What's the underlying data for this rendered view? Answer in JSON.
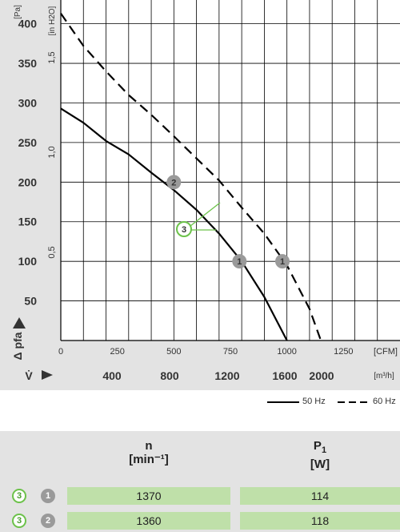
{
  "chart_data": {
    "type": "line",
    "y_unit_top": "[Pa]",
    "y2_unit_top": "[in H2O]",
    "ylabel": "Δ pfa",
    "y_ticks": [
      50,
      100,
      150,
      200,
      250,
      300,
      350,
      400
    ],
    "y2_ticks": [
      "0,5",
      "1,0",
      "1,5"
    ],
    "x_cfm_unit": "[CFM]",
    "x_cfm_ticks": [
      0,
      250,
      500,
      750,
      1000,
      1250
    ],
    "x_m3h_label": "V̇",
    "x_m3h_unit": "[m³/h]",
    "x_m3h_ticks": [
      400,
      800,
      1200,
      1600,
      2000
    ],
    "ylim": [
      0,
      430
    ],
    "xlim_cfm": [
      0,
      1500
    ],
    "series": [
      {
        "name": "50 Hz",
        "style": "solid",
        "color": "#000000",
        "x": [
          0,
          100,
          200,
          300,
          400,
          500,
          600,
          700,
          800,
          900,
          1000
        ],
        "y": [
          293,
          275,
          252,
          235,
          212,
          190,
          165,
          135,
          100,
          55,
          0
        ]
      },
      {
        "name": "60 Hz",
        "style": "dashed",
        "color": "#000000",
        "x": [
          0,
          100,
          200,
          300,
          400,
          500,
          600,
          700,
          800,
          900,
          1000,
          1100,
          1150
        ],
        "y": [
          413,
          372,
          340,
          310,
          285,
          258,
          230,
          202,
          168,
          135,
          95,
          40,
          0
        ]
      }
    ],
    "operating_points": [
      {
        "label": "1",
        "x": 790,
        "y": 100
      },
      {
        "label": "1",
        "x": 980,
        "y": 100
      },
      {
        "label": "2",
        "x": 500,
        "y": 200
      }
    ],
    "annotation": {
      "label": "3"
    },
    "legend": {
      "placement": "bottom-right"
    }
  },
  "legend": {
    "solid_label": "50 Hz",
    "dashed_label": "60 Hz"
  },
  "table": {
    "headers": [
      {
        "symbol": "n",
        "unit": "[min⁻¹]"
      },
      {
        "symbol": "P1",
        "unit": "[W]"
      }
    ],
    "rows": [
      {
        "badge_green": "3",
        "badge_gray": "1",
        "n": "1370",
        "p1": "114"
      },
      {
        "badge_green": "3",
        "badge_gray": "2",
        "n": "1360",
        "p1": "118"
      }
    ]
  }
}
